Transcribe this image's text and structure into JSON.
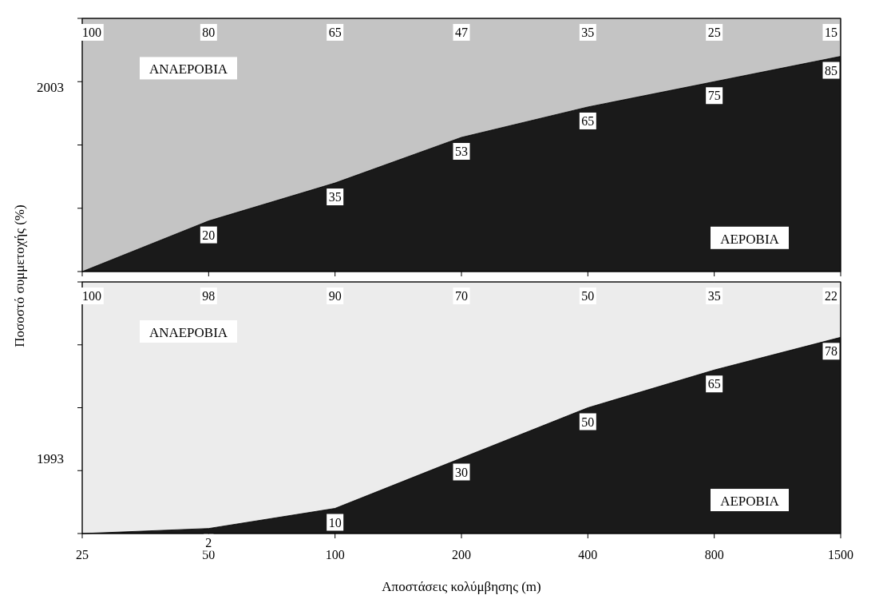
{
  "chart_data": [
    {
      "type": "area",
      "stacked": true,
      "title": "2003",
      "ylabel": "Ποσοστό συμμετοχής (%)",
      "categories": [
        "25",
        "50",
        "100",
        "200",
        "400",
        "800",
        "1500"
      ],
      "ylim": [
        0,
        100
      ],
      "yticks": [
        {
          "value": 0,
          "label": null
        },
        {
          "value": 25,
          "label": null
        },
        {
          "value": 50,
          "label": null
        },
        {
          "value": 75,
          "label": null
        },
        {
          "value": 100,
          "label": null
        }
      ],
      "tick_labels": false,
      "series": [
        {
          "name": "ΑΕΡΟΒΙΑ",
          "color": "#1a1a1a",
          "values": [
            0,
            20,
            35,
            53,
            65,
            75,
            85
          ],
          "value_labels": [
            null,
            "20",
            "35",
            "53",
            "65",
            "75",
            "85"
          ]
        },
        {
          "name": "ΑΝΑΕΡΟΒΙΑ",
          "color": "#c4c4c4",
          "values": [
            100,
            80,
            65,
            47,
            35,
            25,
            15
          ],
          "value_labels": [
            "100",
            "80",
            "65",
            "47",
            "35",
            "25",
            "15"
          ]
        }
      ]
    },
    {
      "type": "area",
      "stacked": true,
      "title": "1993",
      "xlabel": "Αποστάσεις κολύμβησης (m)",
      "categories": [
        "25",
        "50",
        "100",
        "200",
        "400",
        "800",
        "1500"
      ],
      "ylim": [
        0,
        100
      ],
      "yticks": [
        {
          "value": 0,
          "label": null
        },
        {
          "value": 25,
          "label": null
        },
        {
          "value": 50,
          "label": null
        },
        {
          "value": 75,
          "label": null
        },
        {
          "value": 100,
          "label": null
        }
      ],
      "tick_labels": "x",
      "series": [
        {
          "name": "ΑΕΡΟΒΙΑ",
          "color": "#1a1a1a",
          "values": [
            0,
            2,
            10,
            30,
            50,
            65,
            78
          ],
          "value_labels": [
            null,
            "2",
            "10",
            "30",
            "50",
            "65",
            "78"
          ]
        },
        {
          "name": "ΑΝΑΕΡΟΒΙΑ",
          "color": "#ececec",
          "values": [
            100,
            98,
            90,
            70,
            50,
            35,
            22
          ],
          "value_labels": [
            "100",
            "98",
            "90",
            "70",
            "50",
            "35",
            "22"
          ]
        }
      ]
    }
  ]
}
